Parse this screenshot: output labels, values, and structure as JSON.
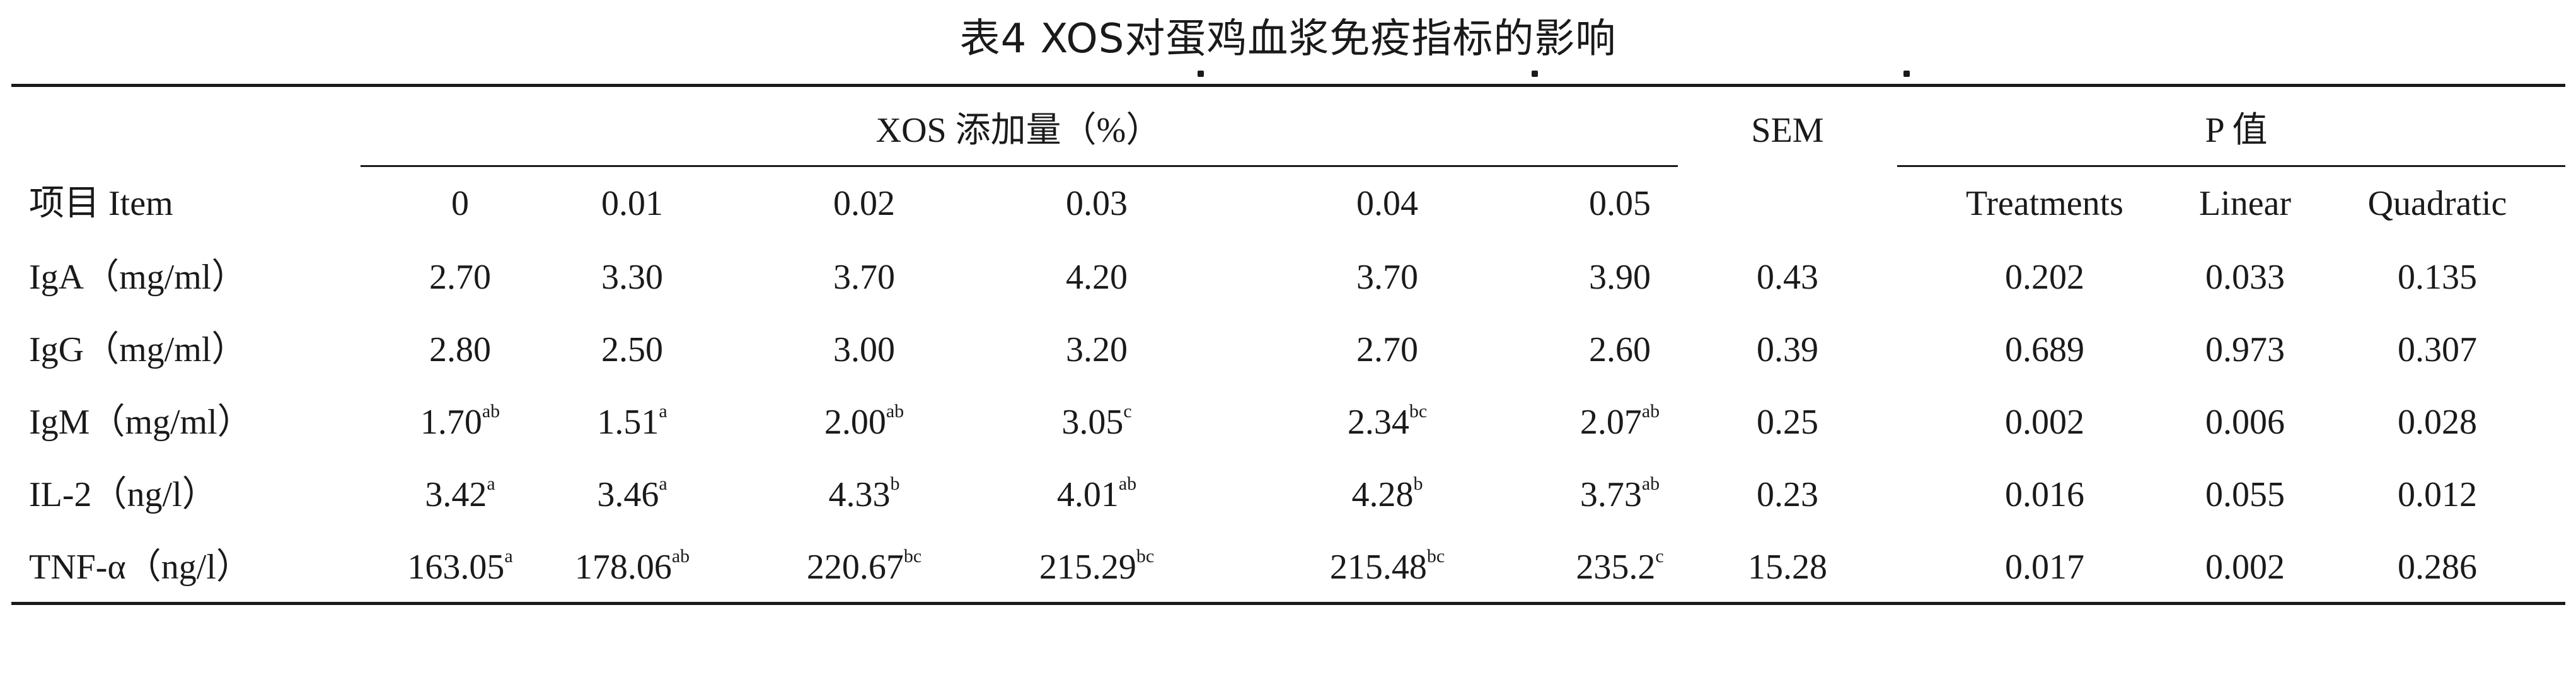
{
  "caption": "表4 XOS对蛋鸡血浆免疫指标的影响",
  "header": {
    "group_xos": "XOS 添加量（%）",
    "group_sem": "SEM",
    "group_p": "P 值",
    "item_label": "项目 Item",
    "levels": [
      "0",
      "0.01",
      "0.02",
      "0.03",
      "0.04",
      "0.05"
    ],
    "p_cols": [
      "Treatments",
      "Linear",
      "Quadratic"
    ]
  },
  "rows": [
    {
      "item": "IgA（mg/ml）",
      "values": [
        {
          "v": "2.70",
          "s": ""
        },
        {
          "v": "3.30",
          "s": ""
        },
        {
          "v": "3.70",
          "s": ""
        },
        {
          "v": "4.20",
          "s": ""
        },
        {
          "v": "3.70",
          "s": ""
        },
        {
          "v": "3.90",
          "s": ""
        }
      ],
      "sem": "0.43",
      "treatments": "0.202",
      "linear": "0.033",
      "quadratic": "0.135"
    },
    {
      "item": "IgG（mg/ml）",
      "values": [
        {
          "v": "2.80",
          "s": ""
        },
        {
          "v": "2.50",
          "s": ""
        },
        {
          "v": "3.00",
          "s": ""
        },
        {
          "v": "3.20",
          "s": ""
        },
        {
          "v": "2.70",
          "s": ""
        },
        {
          "v": "2.60",
          "s": ""
        }
      ],
      "sem": "0.39",
      "treatments": "0.689",
      "linear": "0.973",
      "quadratic": "0.307"
    },
    {
      "item": "IgM（mg/ml）",
      "values": [
        {
          "v": "1.70",
          "s": "ab"
        },
        {
          "v": "1.51",
          "s": "a"
        },
        {
          "v": "2.00",
          "s": "ab"
        },
        {
          "v": "3.05",
          "s": "c"
        },
        {
          "v": "2.34",
          "s": "bc"
        },
        {
          "v": "2.07",
          "s": "ab"
        }
      ],
      "sem": "0.25",
      "treatments": "0.002",
      "linear": "0.006",
      "quadratic": "0.028"
    },
    {
      "item": "IL-2（ng/l）",
      "values": [
        {
          "v": "3.42",
          "s": "a"
        },
        {
          "v": "3.46",
          "s": "a"
        },
        {
          "v": "4.33",
          "s": "b"
        },
        {
          "v": "4.01",
          "s": "ab"
        },
        {
          "v": "4.28",
          "s": "b"
        },
        {
          "v": "3.73",
          "s": "ab"
        }
      ],
      "sem": "0.23",
      "treatments": "0.016",
      "linear": "0.055",
      "quadratic": "0.012"
    },
    {
      "item": "TNF-α（ng/l）",
      "values": [
        {
          "v": "163.05",
          "s": "a"
        },
        {
          "v": "178.06",
          "s": "ab"
        },
        {
          "v": "220.67",
          "s": "bc"
        },
        {
          "v": "215.29",
          "s": "bc"
        },
        {
          "v": "215.48",
          "s": "bc"
        },
        {
          "v": "235.2",
          "s": "c"
        }
      ],
      "sem": "15.28",
      "treatments": "0.017",
      "linear": "0.002",
      "quadratic": "0.286"
    }
  ]
}
